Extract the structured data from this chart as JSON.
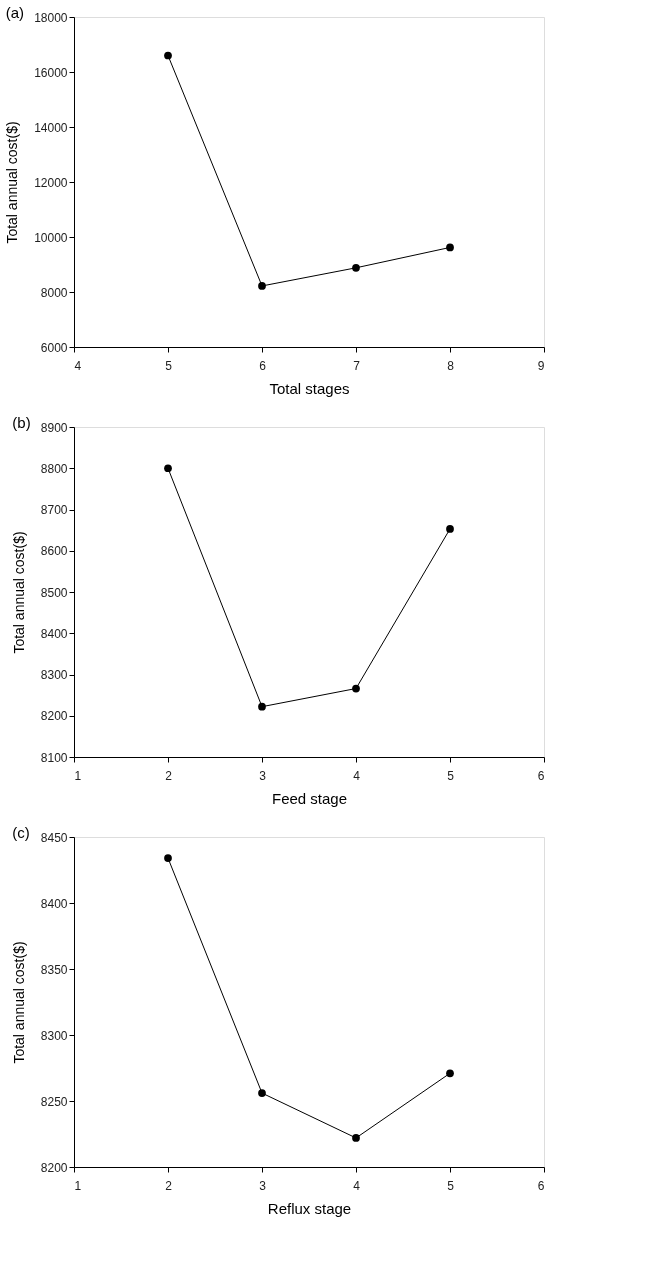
{
  "chart_data": [
    {
      "type": "line",
      "title": "(a)",
      "xlabel": "Total stages",
      "ylabel": "Total annual cost($)",
      "x": [
        5,
        6,
        7,
        8
      ],
      "series": [
        {
          "color": "#000000",
          "values": [
            16600,
            8220,
            8880,
            9620
          ]
        }
      ],
      "xlim": [
        4,
        9
      ],
      "xticks": [
        4,
        5,
        6,
        7,
        8,
        9
      ],
      "ylim": [
        6000,
        18000
      ],
      "yticks": [
        6000,
        8000,
        10000,
        12000,
        14000,
        16000,
        18000
      ],
      "grid": false,
      "legend": false,
      "marker": "circle",
      "line_style": "solid"
    },
    {
      "type": "line",
      "title": "(b)",
      "xlabel": "Feed stage",
      "ylabel": "Total annual cost($)",
      "x": [
        2,
        3,
        4,
        5
      ],
      "series": [
        {
          "color": "#000000",
          "values": [
            8800,
            8222,
            8266,
            8653
          ]
        }
      ],
      "xlim": [
        1,
        6
      ],
      "xticks": [
        1,
        2,
        3,
        4,
        5,
        6
      ],
      "ylim": [
        8100,
        8900
      ],
      "yticks": [
        8100,
        8200,
        8300,
        8400,
        8500,
        8600,
        8700,
        8800,
        8900
      ],
      "grid": false,
      "legend": false,
      "marker": "circle",
      "line_style": "solid"
    },
    {
      "type": "line",
      "title": "(c)",
      "xlabel": "Reflux stage",
      "ylabel": "Total annual cost($)",
      "x": [
        2,
        3,
        4,
        5
      ],
      "series": [
        {
          "color": "#000000",
          "values": [
            8434,
            8256,
            8222,
            8271
          ]
        }
      ],
      "xlim": [
        1,
        6
      ],
      "xticks": [
        1,
        2,
        3,
        4,
        5,
        6
      ],
      "ylim": [
        8200,
        8450
      ],
      "yticks": [
        8200,
        8250,
        8300,
        8350,
        8400,
        8450
      ],
      "grid": false,
      "legend": false,
      "marker": "circle",
      "line_style": "solid"
    }
  ]
}
